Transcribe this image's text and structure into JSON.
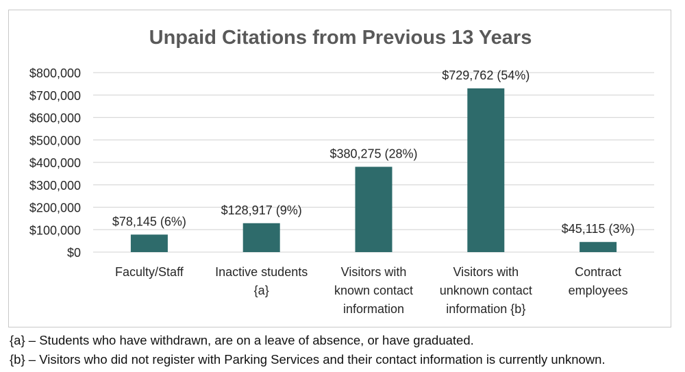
{
  "chart_data": {
    "type": "bar",
    "title": "Unpaid Citations from Previous 13 Years",
    "xlabel": "",
    "ylabel": "",
    "categories": [
      [
        "Faculty/Staff"
      ],
      [
        "Inactive students",
        "{a}"
      ],
      [
        "Visitors with",
        "known contact",
        "information"
      ],
      [
        "Visitors with",
        "unknown contact",
        "information {b}"
      ],
      [
        "Contract",
        "employees"
      ]
    ],
    "values": [
      78145,
      128917,
      380275,
      729762,
      45115
    ],
    "data_labels": [
      "$78,145 (6%)",
      "$128,917 (9%)",
      "$380,275 (28%)",
      "$729,762 (54%)",
      "$45,115 (3%)"
    ],
    "ylim": [
      0,
      800000
    ],
    "y_ticks": [
      0,
      100000,
      200000,
      300000,
      400000,
      500000,
      600000,
      700000,
      800000
    ],
    "y_tick_labels": [
      "$0",
      "$100,000",
      "$200,000",
      "$300,000",
      "$400,000",
      "$500,000",
      "$600,000",
      "$700,000",
      "$800,000"
    ],
    "grid": true,
    "bar_color": "#2e6b6b",
    "grid_color": "#d9d9d9",
    "title_color": "#595959"
  },
  "footnotes": {
    "a": "{a} – Students who have withdrawn, are on a leave of absence, or have graduated.",
    "b": "{b} – Visitors who did not register with Parking Services and their contact information is currently unknown."
  }
}
